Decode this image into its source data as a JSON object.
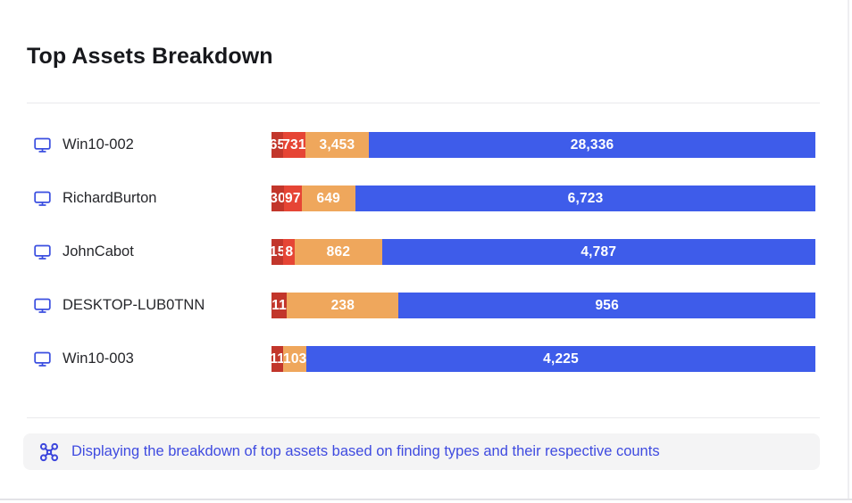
{
  "header": {
    "title": "Top Assets Breakdown"
  },
  "colors": {
    "dark_red": "#c2362b",
    "red": "#e64535",
    "orange": "#efa75c",
    "blue": "#3e5cea",
    "monitor_icon": "#3b4fe0",
    "footer_icon": "#3c46dc",
    "footer_text": "#3f4be0",
    "footer_bg": "#f4f4f5"
  },
  "chart_data": {
    "type": "bar",
    "orientation": "horizontal",
    "stacked": true,
    "title": "Top Assets Breakdown",
    "categories": [
      "Win10-002",
      "RichardBurton",
      "JohnCabot",
      "DESKTOP-LUB0TNN",
      "Win10-003"
    ],
    "series_colors": {
      "dark_red": "#c2362b",
      "red": "#e64535",
      "orange": "#efa75c",
      "blue": "#3e5cea"
    },
    "rows": [
      {
        "label": "Win10-002",
        "icon": "monitor-icon",
        "segments": [
          {
            "value": 65,
            "display": "65",
            "color": "dark_red"
          },
          {
            "value": 731,
            "display": "731",
            "color": "red"
          },
          {
            "value": 3453,
            "display": "3,453",
            "color": "orange"
          },
          {
            "value": 28336,
            "display": "28,336",
            "color": "blue"
          }
        ]
      },
      {
        "label": "RichardBurton",
        "icon": "monitor-icon",
        "segments": [
          {
            "value": 30,
            "display": "30",
            "color": "dark_red"
          },
          {
            "value": 97,
            "display": "97",
            "color": "red"
          },
          {
            "value": 649,
            "display": "649",
            "color": "orange"
          },
          {
            "value": 6723,
            "display": "6,723",
            "color": "blue"
          }
        ]
      },
      {
        "label": "JohnCabot",
        "icon": "monitor-icon",
        "segments": [
          {
            "value": 15,
            "display": "15",
            "color": "dark_red"
          },
          {
            "value": 8,
            "display": "8",
            "color": "red"
          },
          {
            "value": 862,
            "display": "862",
            "color": "orange"
          },
          {
            "value": 4787,
            "display": "4,787",
            "color": "blue"
          }
        ]
      },
      {
        "label": "DESKTOP-LUB0TNN",
        "icon": "monitor-icon",
        "segments": [
          {
            "value": 11,
            "display": "11",
            "color": "dark_red"
          },
          {
            "value": 238,
            "display": "238",
            "color": "orange"
          },
          {
            "value": 956,
            "display": "956",
            "color": "blue"
          }
        ]
      },
      {
        "label": "Win10-003",
        "icon": "monitor-icon",
        "segments": [
          {
            "value": 11,
            "display": "11",
            "color": "dark_red"
          },
          {
            "value": 103,
            "display": "103",
            "color": "orange"
          },
          {
            "value": 4225,
            "display": "4,225",
            "color": "blue"
          }
        ]
      }
    ]
  },
  "footer": {
    "icon": "drone-icon",
    "message": "Displaying the breakdown of top assets based on finding types and their respective counts"
  }
}
